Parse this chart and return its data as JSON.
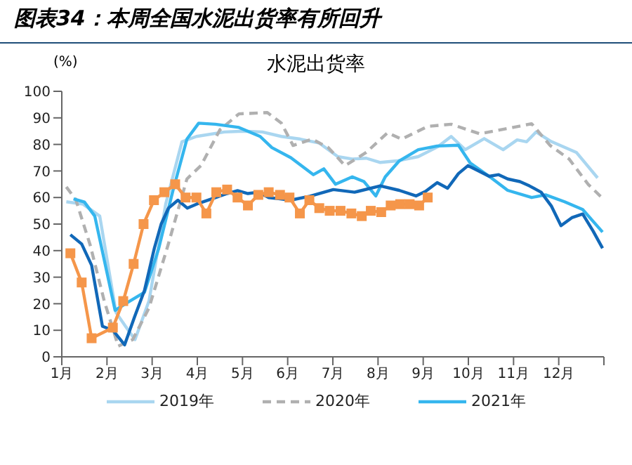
{
  "chart_data": {
    "type": "line",
    "title": "图表34：本周全国水泥出货率有所回升",
    "subtitle": "水泥出货率",
    "ylabel": "(%)",
    "xlim": [
      1,
      13
    ],
    "xticks": [
      {
        "value": 1,
        "label": "1月"
      },
      {
        "value": 2,
        "label": "2月"
      },
      {
        "value": 3,
        "label": "3月"
      },
      {
        "value": 4,
        "label": "4月"
      },
      {
        "value": 5,
        "label": "5月"
      },
      {
        "value": 6,
        "label": "6月"
      },
      {
        "value": 7,
        "label": "7月"
      },
      {
        "value": 8,
        "label": "8月"
      },
      {
        "value": 9,
        "label": "9月"
      },
      {
        "value": 10,
        "label": "10月"
      },
      {
        "value": 11,
        "label": "11月"
      },
      {
        "value": 12,
        "label": "12月"
      },
      {
        "value": 13,
        "label": null
      }
    ],
    "ylim": [
      0,
      100
    ],
    "yticks": [
      0,
      10,
      20,
      30,
      40,
      50,
      60,
      70,
      80,
      90,
      100
    ],
    "legend": "bottom",
    "series": [
      {
        "name": "2019年",
        "color": "#a9d6f0",
        "line_style": "solid",
        "marker": "none",
        "x": [
          1.1,
          1.47,
          1.84,
          2.2,
          2.41,
          2.62,
          2.93,
          3.3,
          3.66,
          3.98,
          4.6,
          5.02,
          5.44,
          5.86,
          6.28,
          6.7,
          7.11,
          7.43,
          7.74,
          8.05,
          8.42,
          8.89,
          9.31,
          9.62,
          9.93,
          10.35,
          10.77,
          11.08,
          11.29,
          11.5,
          11.81,
          12.39,
          12.86
        ],
        "values": [
          58.4,
          57.5,
          53,
          16.7,
          11.5,
          6.5,
          21,
          57.5,
          81,
          83,
          84.7,
          85,
          84.7,
          83,
          82,
          80.5,
          75.4,
          74.5,
          74.8,
          73.2,
          73.8,
          75.4,
          79,
          83,
          78,
          82.2,
          78,
          81.7,
          81,
          84.7,
          81.3,
          77,
          67.4
        ]
      },
      {
        "name": "2020年",
        "color": "#b0b0b0",
        "line_style": "dashed",
        "marker": "none",
        "x": [
          1.1,
          1.31,
          1.63,
          1.94,
          2.25,
          2.57,
          2.93,
          3.35,
          3.77,
          4.08,
          4.5,
          4.92,
          5.55,
          5.86,
          6.12,
          6.54,
          6.9,
          7.27,
          7.74,
          8.21,
          8.52,
          9.1,
          9.62,
          10.25,
          10.87,
          11.4,
          11.81,
          12.23,
          12.65,
          13
        ],
        "values": [
          64,
          59.2,
          42,
          21,
          4,
          6.5,
          18.4,
          42,
          67,
          72,
          85.5,
          91.5,
          92,
          88,
          79.6,
          82,
          78.8,
          72,
          77,
          84.4,
          82,
          86.8,
          87.6,
          84,
          86,
          87.8,
          79.6,
          74.5,
          65,
          59.2
        ]
      },
      {
        "name": "2021年",
        "color": "#35b6ee",
        "line_style": "solid",
        "marker": "none",
        "x": [
          1.26,
          1.5,
          1.73,
          2.18,
          2.41,
          2.83,
          3.14,
          3.46,
          3.77,
          4.03,
          4.4,
          4.92,
          5.39,
          5.65,
          6.07,
          6.57,
          6.8,
          7.06,
          7.43,
          7.69,
          7.95,
          8.16,
          8.47,
          8.89,
          9.31,
          9.78,
          10.04,
          10.46,
          10.87,
          11.4,
          11.71,
          12.13,
          12.53,
          12.97
        ],
        "values": [
          59.5,
          58.3,
          53,
          17.5,
          20,
          24.3,
          40.5,
          62.6,
          82,
          88,
          87.6,
          86.4,
          83,
          78.8,
          75,
          68.6,
          70.8,
          65,
          67.8,
          66,
          60.6,
          67.8,
          73.8,
          78,
          79.4,
          79.7,
          73,
          68,
          62.7,
          60,
          61,
          58.4,
          55.5,
          47
        ]
      },
      {
        "color": "#1168b8",
        "line_style": "solid",
        "marker": "none",
        "x": [
          1.19,
          1.44,
          1.66,
          1.9,
          2.13,
          2.39,
          2.61,
          2.83,
          3.05,
          3.2,
          3.36,
          3.57,
          3.78,
          3.98,
          4.41,
          4.66,
          4.89,
          5.12,
          5.35,
          5.58,
          5.83,
          6.06,
          6.49,
          7.01,
          7.48,
          8.05,
          8.47,
          8.84,
          9.05,
          9.31,
          9.54,
          9.78,
          9.99,
          10.23,
          10.46,
          10.67,
          10.87,
          11.14,
          11.35,
          11.61,
          11.84,
          12.05,
          12.29,
          12.53,
          12.76,
          12.97
        ],
        "values": [
          46,
          42.5,
          34.5,
          11.5,
          10,
          4.5,
          15,
          25,
          41,
          50,
          56,
          59,
          56,
          57.5,
          60,
          61.5,
          62.6,
          61.5,
          62,
          60,
          59.5,
          59,
          60.5,
          63,
          62,
          64.4,
          62.7,
          60.6,
          62.3,
          65.6,
          63.5,
          69,
          72,
          70,
          68,
          68.6,
          67,
          66,
          64.4,
          62,
          56.7,
          49.4,
          52.4,
          53.8,
          47.4,
          40.9
        ]
      },
      {
        "color": "#f5964a",
        "line_style": "solid",
        "marker": "square",
        "x": [
          1.19,
          1.44,
          1.66,
          2.13,
          2.36,
          2.59,
          2.81,
          3.04,
          3.27,
          3.51,
          3.74,
          3.98,
          4.2,
          4.42,
          4.66,
          4.89,
          5.12,
          5.35,
          5.58,
          5.83,
          6.04,
          6.27,
          6.48,
          6.7,
          6.93,
          7.17,
          7.41,
          7.64,
          7.84,
          8.07,
          8.28,
          8.49,
          8.7,
          8.91,
          9.1
        ],
        "values": [
          39,
          28,
          7,
          11,
          21,
          35,
          50,
          59,
          62,
          65,
          60,
          60,
          54,
          62,
          63,
          60,
          57,
          61,
          62,
          61,
          60,
          54,
          59,
          56,
          55,
          55,
          54,
          53,
          55,
          54.5,
          57,
          57.5,
          57.5,
          57,
          60
        ]
      }
    ]
  }
}
